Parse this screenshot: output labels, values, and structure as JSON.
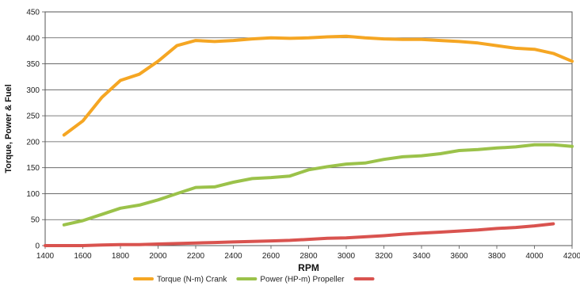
{
  "chart_data": {
    "type": "line",
    "xlabel": "RPM",
    "ylabel": "Torque, Power & Fuel",
    "xlim": [
      1400,
      4200
    ],
    "ylim": [
      0,
      450
    ],
    "xticks": [
      1400,
      1600,
      1800,
      2000,
      2200,
      2400,
      2600,
      2800,
      3000,
      3200,
      3400,
      3600,
      3800,
      4000,
      4200
    ],
    "yticks": [
      0,
      50,
      100,
      150,
      200,
      250,
      300,
      350,
      400,
      450
    ],
    "grid": "horizontal",
    "legend_position": "bottom",
    "series": [
      {
        "name": "Torque (N-m) Crank",
        "color": "#f5a623",
        "points": [
          [
            1500,
            213
          ],
          [
            1600,
            240
          ],
          [
            1700,
            285
          ],
          [
            1800,
            318
          ],
          [
            1900,
            330
          ],
          [
            2000,
            355
          ],
          [
            2100,
            385
          ],
          [
            2200,
            395
          ],
          [
            2300,
            393
          ],
          [
            2400,
            395
          ],
          [
            2500,
            398
          ],
          [
            2600,
            400
          ],
          [
            2700,
            399
          ],
          [
            2800,
            400
          ],
          [
            2900,
            402
          ],
          [
            3000,
            403
          ],
          [
            3100,
            400
          ],
          [
            3200,
            398
          ],
          [
            3300,
            397
          ],
          [
            3400,
            397
          ],
          [
            3500,
            395
          ],
          [
            3600,
            393
          ],
          [
            3700,
            390
          ],
          [
            3800,
            385
          ],
          [
            3900,
            380
          ],
          [
            4000,
            378
          ],
          [
            4100,
            370
          ],
          [
            4200,
            355
          ]
        ]
      },
      {
        "name": "Power (HP-m) Propeller",
        "color": "#9bc24a",
        "points": [
          [
            1500,
            40
          ],
          [
            1600,
            48
          ],
          [
            1700,
            60
          ],
          [
            1800,
            72
          ],
          [
            1900,
            78
          ],
          [
            2000,
            88
          ],
          [
            2100,
            100
          ],
          [
            2200,
            112
          ],
          [
            2300,
            113
          ],
          [
            2400,
            122
          ],
          [
            2500,
            129
          ],
          [
            2600,
            131
          ],
          [
            2700,
            134
          ],
          [
            2800,
            146
          ],
          [
            2900,
            152
          ],
          [
            3000,
            157
          ],
          [
            3100,
            159
          ],
          [
            3200,
            166
          ],
          [
            3300,
            171
          ],
          [
            3400,
            173
          ],
          [
            3500,
            177
          ],
          [
            3600,
            183
          ],
          [
            3700,
            185
          ],
          [
            3800,
            188
          ],
          [
            3900,
            190
          ],
          [
            4000,
            194
          ],
          [
            4100,
            194
          ],
          [
            4200,
            191
          ]
        ]
      },
      {
        "name": "",
        "color": "#d9534f",
        "points": [
          [
            1400,
            0
          ],
          [
            1500,
            0
          ],
          [
            1600,
            0
          ],
          [
            1700,
            1
          ],
          [
            1800,
            2
          ],
          [
            1900,
            2
          ],
          [
            2000,
            3
          ],
          [
            2100,
            4
          ],
          [
            2200,
            5
          ],
          [
            2300,
            6
          ],
          [
            2400,
            7
          ],
          [
            2500,
            8
          ],
          [
            2600,
            9
          ],
          [
            2700,
            10
          ],
          [
            2800,
            12
          ],
          [
            2900,
            14
          ],
          [
            3000,
            15
          ],
          [
            3100,
            17
          ],
          [
            3200,
            19
          ],
          [
            3300,
            22
          ],
          [
            3400,
            24
          ],
          [
            3500,
            26
          ],
          [
            3600,
            28
          ],
          [
            3700,
            30
          ],
          [
            3800,
            33
          ],
          [
            3900,
            35
          ],
          [
            4000,
            38
          ],
          [
            4100,
            42
          ]
        ]
      }
    ]
  }
}
